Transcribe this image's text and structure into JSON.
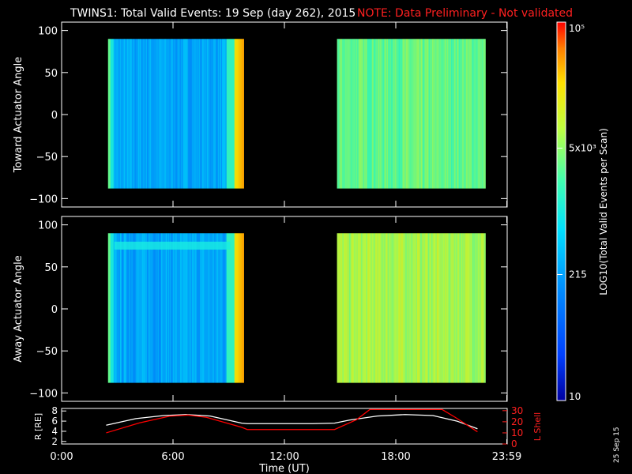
{
  "header": {
    "title": "TWINS1: Total Valid Events: 19 Sep (day 262), 2015",
    "note": "NOTE: Data Preliminary - Not validated"
  },
  "footer": {
    "date_stamp": "25 Sep 15"
  },
  "colors": {
    "background": "#000000",
    "axes": "#ffffff",
    "note": "#ff0000",
    "lshell": "#ff0000",
    "radius": "#ffffff"
  },
  "chart_data": [
    {
      "type": "heatmap",
      "panel": "toward",
      "ylabel": "Toward Actuator Angle",
      "ylim": [
        -110,
        110
      ],
      "yticks": [
        -100,
        -50,
        0,
        50,
        100
      ],
      "x_range_hours": [
        0,
        24
      ],
      "blocks": [
        {
          "start": "02:30",
          "end": "09:50",
          "level": 0.35,
          "note": "edges bright green/yellow, orange at end"
        },
        {
          "start": "14:50",
          "end": "22:50",
          "level": 0.62
        }
      ],
      "angle_range": [
        -88,
        90
      ]
    },
    {
      "type": "heatmap",
      "panel": "away",
      "ylabel": "Away Actuator Angle",
      "ylim": [
        -110,
        110
      ],
      "yticks": [
        -100,
        -50,
        0,
        50,
        100
      ],
      "x_range_hours": [
        0,
        24
      ],
      "blocks": [
        {
          "start": "02:30",
          "end": "09:50",
          "level": 0.35
        },
        {
          "start": "14:50",
          "end": "22:50",
          "level": 0.7
        }
      ],
      "angle_range": [
        -88,
        90
      ]
    },
    {
      "type": "colorbar",
      "label": "LOG10(Total Valid Events per Scan)",
      "tick_labels": [
        "10",
        "215",
        "5x10³",
        "10⁵"
      ],
      "tick_fractions": [
        0,
        0.333,
        0.667,
        1.0
      ]
    },
    {
      "type": "line",
      "panel": "orbit",
      "xlabel": "Time (UT)",
      "x_ticks": [
        "0:00",
        "6:00",
        "12:00",
        "18:00",
        "23:59"
      ],
      "x_tick_hours": [
        0,
        6,
        12,
        18,
        23.98
      ],
      "left_axis": {
        "label": "R [RE]",
        "ylim": [
          1.5,
          8.5
        ],
        "ticks": [
          2,
          4,
          6,
          8
        ]
      },
      "right_axis": {
        "label": "L Shell",
        "ylim": [
          0,
          32
        ],
        "ticks": [
          0,
          10,
          20,
          30
        ]
      },
      "series": [
        {
          "name": "R",
          "axis": "left",
          "x": [
            2.4,
            4.0,
            5.5,
            6.7,
            8.0,
            9.7,
            10.0,
            11.5,
            12.5,
            13.5,
            14.7,
            15.5,
            17.0,
            18.5,
            20.0,
            21.3,
            22.4
          ],
          "y": [
            5.2,
            6.5,
            7.1,
            7.3,
            7.0,
            5.6,
            5.5,
            5.5,
            5.5,
            5.5,
            5.6,
            6.2,
            7.0,
            7.3,
            7.1,
            6.0,
            4.5
          ]
        },
        {
          "name": "L Shell",
          "axis": "right",
          "x": [
            2.4,
            4.2,
            5.8,
            6.8,
            7.8,
            9.7,
            10.0,
            14.7,
            15.9,
            16.6,
            20.5,
            21.2,
            22.4
          ],
          "y": [
            10,
            19,
            25,
            26,
            24,
            15,
            13,
            13,
            22,
            31,
            31,
            24,
            11
          ]
        }
      ]
    }
  ]
}
